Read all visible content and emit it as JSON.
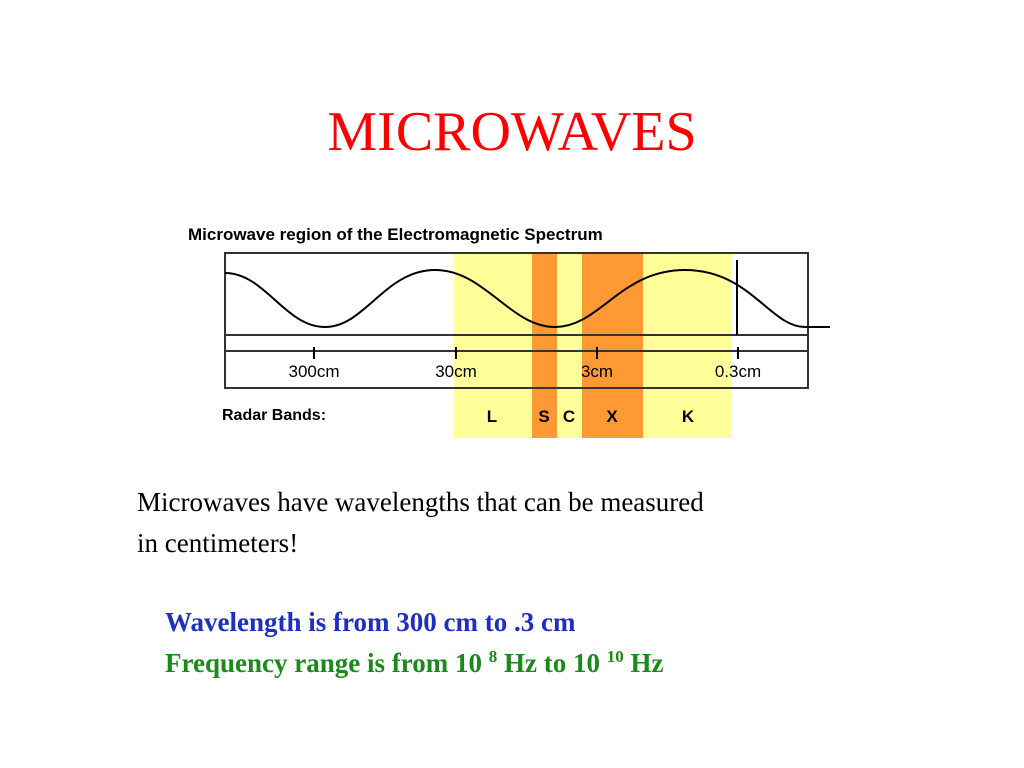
{
  "slide": {
    "title": "MICROWAVES",
    "body_line1": "Microwaves have wavelengths that can be measured",
    "body_line2": "in centimeters!"
  },
  "diagram": {
    "heading": "Microwave region of the Electromagnetic Spectrum",
    "wavelength_ticks": [
      "300cm",
      "30cm",
      "3cm",
      "0.3cm"
    ],
    "radar_bands_label": "Radar Bands:",
    "bands": [
      {
        "label": "L",
        "color": "#ffff99"
      },
      {
        "label": "S",
        "color": "#ff9933"
      },
      {
        "label": "C",
        "color": "#ffff99"
      },
      {
        "label": "X",
        "color": "#ff9933"
      },
      {
        "label": "K",
        "color": "#ffff99"
      }
    ],
    "colors": {
      "light_band": "#ffff99",
      "dark_band": "#ff9933"
    }
  },
  "facts": {
    "wavelength": "Wavelength is from 300 cm to .3 cm",
    "frequency_prefix": "Frequency range is from 10 ",
    "frequency_exp1": "8",
    "frequency_mid": " Hz to 10 ",
    "frequency_exp2": "10",
    "frequency_suffix": " Hz",
    "wavelength_color": "#1f2fbf",
    "frequency_color": "#1a8a1a"
  }
}
